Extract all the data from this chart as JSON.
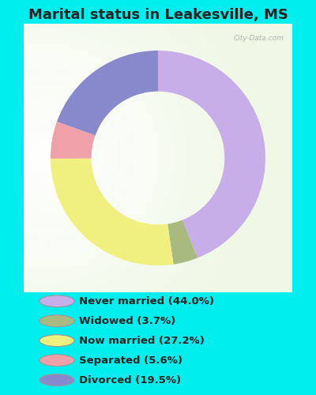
{
  "title": "Marital status in Leakesville, MS",
  "title_fontsize": 13,
  "title_fontweight": "bold",
  "title_color": "#222222",
  "background_outer": "#00eeee",
  "watermark": "City-Data.com",
  "pie_values": [
    44.0,
    3.7,
    27.2,
    5.6,
    19.5
  ],
  "pie_colors": [
    "#c8aee8",
    "#a8ba80",
    "#f0f080",
    "#f0a0a8",
    "#8888cc"
  ],
  "legend_colors": [
    "#c8aee8",
    "#a8ba80",
    "#f0f080",
    "#f0a0a8",
    "#8888cc"
  ],
  "legend_labels": [
    "Never married (44.0%)",
    "Widowed (3.7%)",
    "Now married (27.2%)",
    "Separated (5.6%)",
    "Divorced (19.5%)"
  ],
  "donut_width": 0.38,
  "start_angle": 90
}
